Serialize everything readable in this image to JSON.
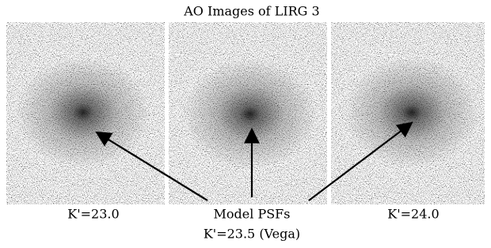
{
  "title": "AO Images of LIRG 3",
  "panels": [
    {
      "label": "K'=23.0"
    },
    {
      "label": "K'=24.0"
    }
  ],
  "annotation": {
    "line1": "Model PSFs",
    "line2": "K'=23.5 (Vega)"
  }
}
